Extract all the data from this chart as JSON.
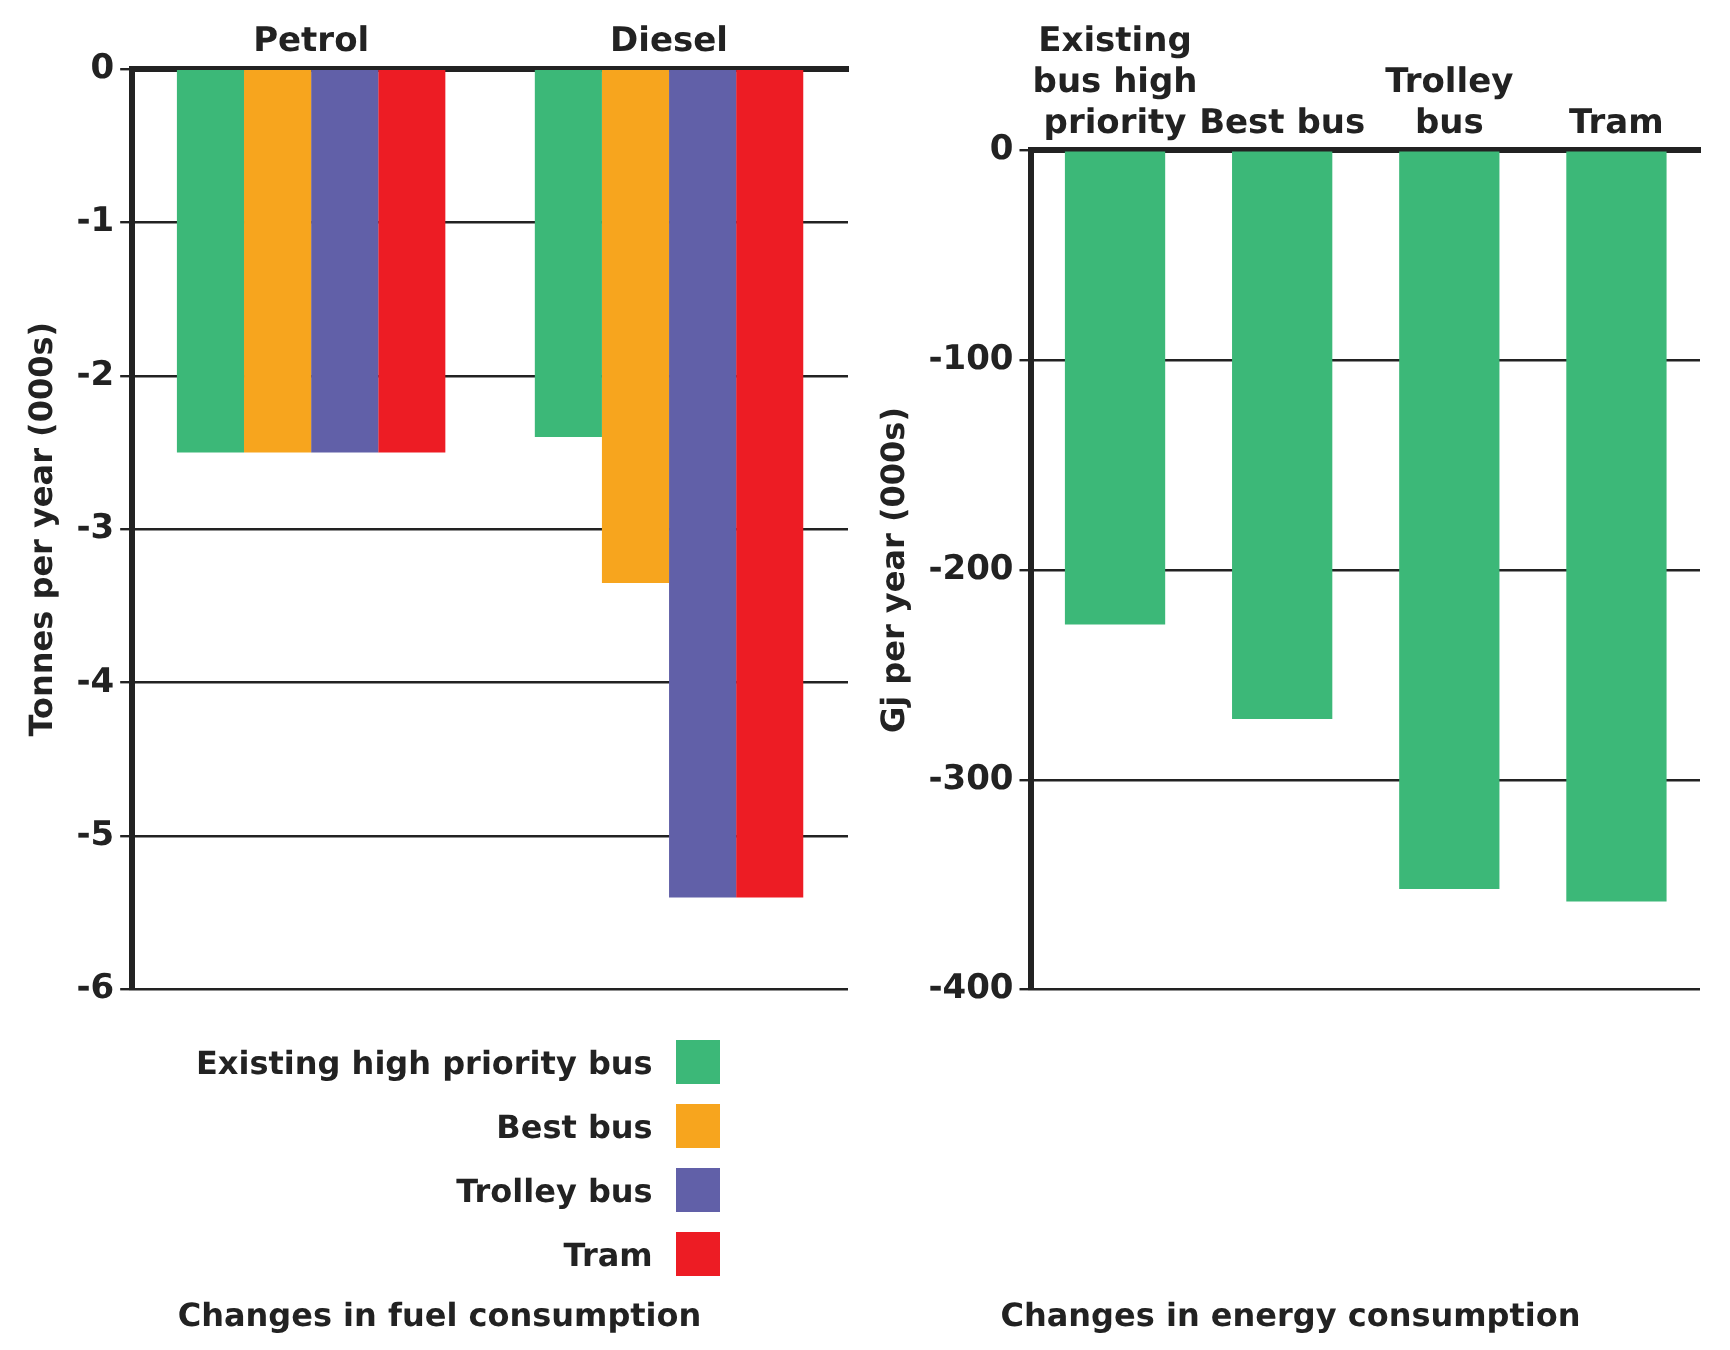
{
  "chart_data": [
    {
      "type": "bar",
      "title": "Changes in fuel consumption",
      "ylabel": "Tonnes per year (000s)",
      "categories": [
        "Petrol",
        "Diesel"
      ],
      "series": [
        {
          "name": "Existing high priority bus",
          "color": "#3cb878",
          "values": [
            -2.5,
            -2.4
          ]
        },
        {
          "name": "Best bus",
          "color": "#f7a51e",
          "values": [
            -2.5,
            -3.35
          ]
        },
        {
          "name": "Trolley bus",
          "color": "#6160a8",
          "values": [
            -2.5,
            -5.4
          ]
        },
        {
          "name": "Tram",
          "color": "#ed1c24",
          "values": [
            -2.5,
            -5.4
          ]
        }
      ],
      "ylim": [
        -6,
        0
      ],
      "yticks": [
        -6,
        -5,
        -4,
        -3,
        -2,
        -1,
        0
      ],
      "grid": "y",
      "legend": "bottom"
    },
    {
      "type": "bar",
      "title": "Changes in energy consumption",
      "ylabel": "Gj per year (000s)",
      "categories": [
        "Existing bus high priority",
        "Best bus",
        "Trolley bus",
        "Tram"
      ],
      "values": [
        -226,
        -271,
        -352,
        -358
      ],
      "color": "#3cb878",
      "ylim": [
        -400,
        0
      ],
      "yticks": [
        -400,
        -300,
        -200,
        -100,
        0
      ],
      "grid": "y"
    }
  ]
}
